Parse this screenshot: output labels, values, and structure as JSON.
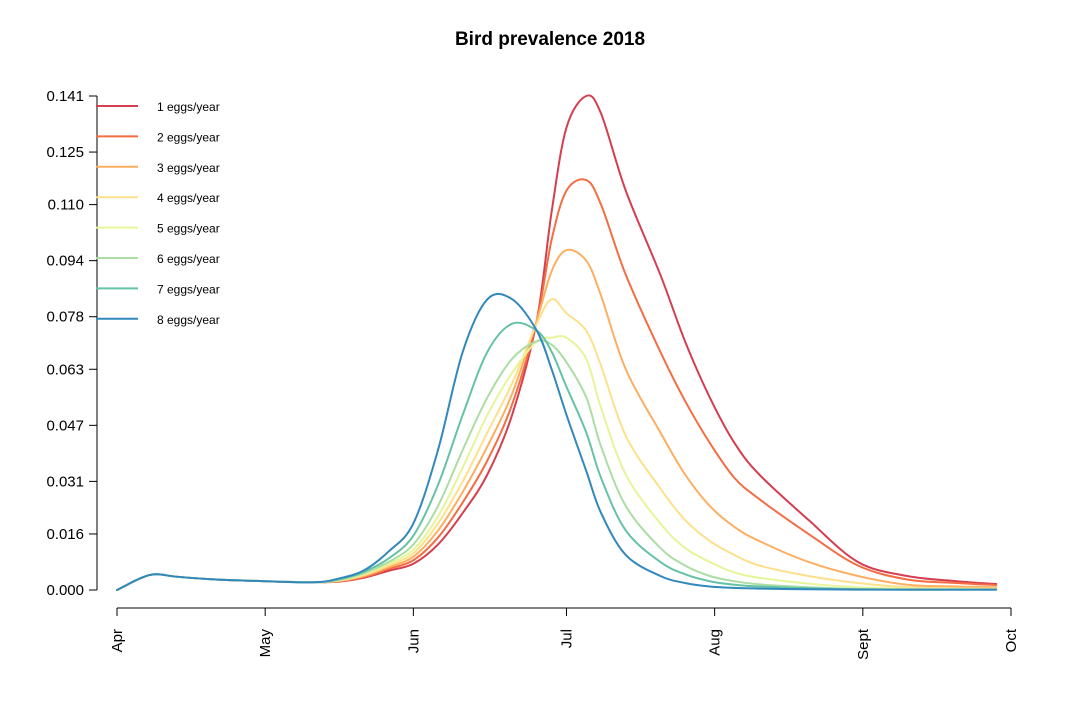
{
  "chart_data": {
    "type": "line",
    "title": "Bird prevalence 2018",
    "xlabel": "",
    "ylabel": "",
    "ylim": [
      0,
      0.141
    ],
    "y_ticks": [
      "0.000",
      "0.016",
      "0.031",
      "0.047",
      "0.063",
      "0.078",
      "0.094",
      "0.110",
      "0.125",
      "0.141"
    ],
    "y_tick_values": [
      0.0,
      0.016,
      0.031,
      0.047,
      0.063,
      0.078,
      0.094,
      0.11,
      0.125,
      0.141
    ],
    "x_month_labels": [
      "Apr",
      "May",
      "Jun",
      "Jul",
      "Aug",
      "Sept",
      "Oct"
    ],
    "x_month_day_index": [
      0,
      30,
      60,
      91,
      121,
      151,
      181
    ],
    "x_day_range": [
      0,
      181
    ],
    "legend_position": "top-left",
    "x": [
      0,
      5,
      8,
      12,
      20,
      30,
      40,
      45,
      50,
      55,
      60,
      65,
      70,
      75,
      80,
      85,
      88,
      91,
      95,
      98,
      103,
      110,
      115,
      120,
      125,
      130,
      140,
      150,
      160,
      170,
      178
    ],
    "series": [
      {
        "name": "1 eggs/year",
        "color": "#d53e4f",
        "values": [
          0.0,
          0.0035,
          0.0045,
          0.0038,
          0.003,
          0.0025,
          0.0022,
          0.0024,
          0.0035,
          0.0055,
          0.0075,
          0.013,
          0.022,
          0.033,
          0.05,
          0.077,
          0.108,
          0.132,
          0.141,
          0.136,
          0.114,
          0.09,
          0.071,
          0.055,
          0.042,
          0.033,
          0.02,
          0.008,
          0.004,
          0.0025,
          0.0017
        ]
      },
      {
        "name": "2 eggs/year",
        "color": "#f46d43",
        "values": [
          0.0,
          0.0035,
          0.0045,
          0.0038,
          0.003,
          0.0025,
          0.0022,
          0.0025,
          0.0037,
          0.006,
          0.0085,
          0.015,
          0.025,
          0.037,
          0.053,
          0.077,
          0.1,
          0.114,
          0.117,
          0.11,
          0.09,
          0.068,
          0.054,
          0.042,
          0.032,
          0.026,
          0.016,
          0.007,
          0.003,
          0.002,
          0.0014
        ]
      },
      {
        "name": "3 eggs/year",
        "color": "#fdae61",
        "values": [
          0.0,
          0.0035,
          0.0045,
          0.0038,
          0.003,
          0.0025,
          0.0022,
          0.0026,
          0.004,
          0.0065,
          0.0095,
          0.017,
          0.028,
          0.041,
          0.056,
          0.077,
          0.091,
          0.097,
          0.094,
          0.084,
          0.063,
          0.045,
          0.033,
          0.024,
          0.018,
          0.014,
          0.008,
          0.004,
          0.0015,
          0.001,
          0.0008
        ]
      },
      {
        "name": "4 eggs/year",
        "color": "#fee08b",
        "values": [
          0.0,
          0.0035,
          0.0045,
          0.0038,
          0.003,
          0.0025,
          0.0022,
          0.0027,
          0.0043,
          0.007,
          0.0105,
          0.019,
          0.031,
          0.045,
          0.059,
          0.076,
          0.083,
          0.079,
          0.074,
          0.064,
          0.044,
          0.029,
          0.02,
          0.014,
          0.01,
          0.007,
          0.004,
          0.002,
          0.0008,
          0.0005,
          0.0004
        ]
      },
      {
        "name": "5 eggs/year",
        "color": "#e6f598",
        "values": [
          0.0,
          0.0035,
          0.0045,
          0.0038,
          0.003,
          0.0025,
          0.0022,
          0.0028,
          0.0046,
          0.0075,
          0.0115,
          0.021,
          0.035,
          0.05,
          0.062,
          0.071,
          0.072,
          0.072,
          0.066,
          0.052,
          0.033,
          0.019,
          0.012,
          0.008,
          0.005,
          0.0035,
          0.0018,
          0.0008,
          0.0004,
          0.0003,
          0.0002
        ]
      },
      {
        "name": "6 eggs/year",
        "color": "#abdda4",
        "values": [
          0.0,
          0.0035,
          0.0045,
          0.0038,
          0.003,
          0.0025,
          0.0022,
          0.0029,
          0.0048,
          0.008,
          0.013,
          0.024,
          0.04,
          0.055,
          0.066,
          0.071,
          0.07,
          0.065,
          0.055,
          0.041,
          0.024,
          0.012,
          0.007,
          0.004,
          0.0025,
          0.0016,
          0.0008,
          0.0003,
          0.0001,
          0.0001,
          0.0001
        ]
      },
      {
        "name": "7 eggs/year",
        "color": "#66c2a5",
        "values": [
          0.0,
          0.0035,
          0.0045,
          0.0038,
          0.003,
          0.0025,
          0.0022,
          0.0031,
          0.0052,
          0.009,
          0.0155,
          0.03,
          0.05,
          0.068,
          0.076,
          0.074,
          0.068,
          0.058,
          0.045,
          0.032,
          0.017,
          0.008,
          0.0045,
          0.0025,
          0.0015,
          0.001,
          0.0005,
          0.0002,
          0.0001,
          0.0001,
          0.0001
        ]
      },
      {
        "name": "8 eggs/year",
        "color": "#3288bd",
        "values": [
          0.0,
          0.0035,
          0.0045,
          0.0038,
          0.003,
          0.0025,
          0.0022,
          0.0033,
          0.0056,
          0.011,
          0.019,
          0.04,
          0.068,
          0.083,
          0.083,
          0.074,
          0.063,
          0.05,
          0.034,
          0.022,
          0.01,
          0.004,
          0.002,
          0.001,
          0.0006,
          0.0004,
          0.0002,
          0.0001,
          0.0001,
          0.0001,
          0.0001
        ]
      }
    ]
  }
}
